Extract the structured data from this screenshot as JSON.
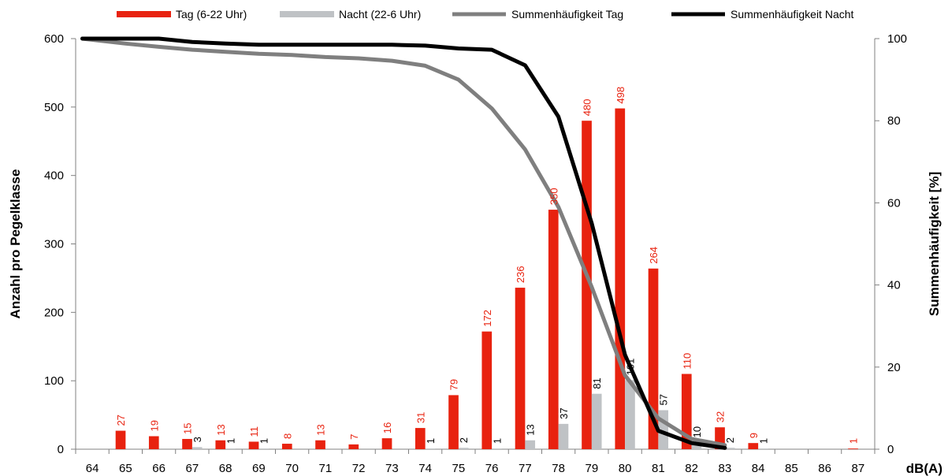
{
  "chart_data": {
    "type": "bar",
    "categories": [
      "64",
      "65",
      "66",
      "67",
      "68",
      "69",
      "70",
      "71",
      "72",
      "73",
      "74",
      "75",
      "76",
      "77",
      "78",
      "79",
      "80",
      "81",
      "82",
      "83",
      "84",
      "85",
      "86",
      "87"
    ],
    "series": [
      {
        "name": "Tag (6-22 Uhr)",
        "kind": "bar",
        "axis": "left",
        "color": "#e8220f",
        "values": [
          null,
          27,
          19,
          15,
          13,
          11,
          8,
          13,
          7,
          16,
          31,
          79,
          172,
          236,
          350,
          480,
          498,
          264,
          110,
          32,
          9,
          null,
          null,
          1
        ],
        "labels": [
          "",
          "27",
          "19",
          "15",
          "13",
          "11",
          "8",
          "13",
          "7",
          "16",
          "31",
          "79",
          "172",
          "236",
          "350",
          "480",
          "498",
          "264",
          "110",
          "32",
          "9",
          "",
          "",
          "1"
        ]
      },
      {
        "name": "Nacht (22-6 Uhr)",
        "kind": "bar",
        "axis": "left",
        "color": "#bfc2c5",
        "values": [
          null,
          null,
          null,
          3,
          1,
          1,
          null,
          null,
          null,
          null,
          1,
          2,
          1,
          13,
          37,
          81,
          101,
          57,
          10,
          2,
          1,
          null,
          null,
          null
        ],
        "labels": [
          "",
          "",
          "",
          "3",
          "1",
          "1",
          "",
          "",
          "",
          "",
          "1",
          "2",
          "1",
          "13",
          "37",
          "81",
          "101",
          "57",
          "10",
          "2",
          "1",
          "",
          "",
          ""
        ]
      },
      {
        "name": "Summenhäufigkeit Tag",
        "kind": "line",
        "axis": "right",
        "color": "#7f7f7f",
        "values": [
          100,
          98.8,
          98.0,
          97.3,
          96.8,
          96.3,
          96.0,
          95.5,
          95.2,
          94.6,
          93.4,
          90.0,
          83.0,
          73.0,
          59.0,
          39.5,
          18.0,
          7.5,
          2.5,
          1.0,
          null,
          null,
          null,
          null
        ]
      },
      {
        "name": "Summenhäufigkeit Nacht",
        "kind": "line",
        "axis": "right",
        "color": "#000000",
        "values": [
          100,
          100,
          100,
          99.2,
          98.8,
          98.5,
          98.5,
          98.5,
          98.5,
          98.5,
          98.3,
          97.6,
          97.3,
          93.5,
          81.0,
          55.0,
          23.0,
          4.5,
          1.5,
          0.3,
          null,
          null,
          null,
          null
        ]
      }
    ],
    "xlabel": "dB(A)",
    "ylabel": "Anzahl pro Pegelklasse",
    "y2label": "Summenhäufigkeit [%]",
    "ylim": [
      0,
      600
    ],
    "yticks": [
      "0",
      "100",
      "200",
      "300",
      "400",
      "500",
      "600"
    ],
    "y2lim": [
      0,
      100
    ],
    "y2ticks": [
      "0",
      "20",
      "40",
      "60",
      "80",
      "100"
    ],
    "grid": false,
    "legend_position": "top"
  }
}
